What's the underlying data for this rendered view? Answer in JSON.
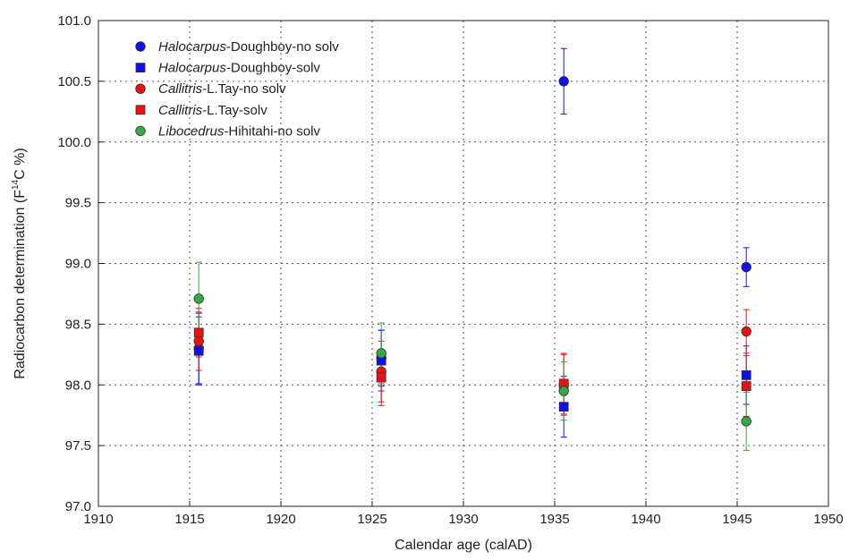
{
  "chart_data": {
    "type": "scatter",
    "title": "",
    "xlabel": "Calendar age (calAD)",
    "ylabel_parts": [
      "Radiocarbon determination (F",
      "14",
      "C %)"
    ],
    "xlim": [
      1910,
      1950
    ],
    "ylim": [
      97.0,
      101.0
    ],
    "x_ticks": [
      1910,
      1915,
      1920,
      1925,
      1930,
      1935,
      1940,
      1945,
      1950
    ],
    "x_tick_labels": [
      "1910",
      "1915",
      "1920",
      "1925",
      "1930",
      "1935",
      "1940",
      "1945",
      "1950"
    ],
    "y_ticks": [
      97.0,
      97.5,
      98.0,
      98.5,
      99.0,
      99.5,
      100.0,
      100.5,
      101.0
    ],
    "y_tick_labels": [
      "97.0",
      "97.5",
      "98.0",
      "98.5",
      "99.0",
      "99.5",
      "100.0",
      "100.5",
      "101.0"
    ],
    "grid": true,
    "legend_position": "top-left",
    "series": [
      {
        "name_italic": "Halocarpus",
        "name_rest": "-Doughboy-no solv",
        "marker": "circle",
        "color": "#1010ee",
        "points": [
          {
            "x": 1915.5,
            "y": 98.3,
            "err": 0.29
          },
          {
            "x": 1925.5,
            "y": 98.22,
            "err": 0.23
          },
          {
            "x": 1935.5,
            "y": 100.5,
            "err": 0.27
          },
          {
            "x": 1945.5,
            "y": 98.97,
            "err": 0.16
          }
        ]
      },
      {
        "name_italic": "Halocarpus",
        "name_rest": "-Doughboy-solv",
        "marker": "square",
        "color": "#1010ee",
        "points": [
          {
            "x": 1915.5,
            "y": 98.28,
            "err": 0.28
          },
          {
            "x": 1925.5,
            "y": 98.2,
            "err": 0.25
          },
          {
            "x": 1935.5,
            "y": 97.82,
            "err": 0.25
          },
          {
            "x": 1945.5,
            "y": 98.08,
            "err": 0.24
          }
        ]
      },
      {
        "name_italic": "Callitris",
        "name_rest": "-L.Tay-no solv",
        "marker": "circle",
        "color": "#ee1010",
        "points": [
          {
            "x": 1915.5,
            "y": 98.36,
            "err": 0.24
          },
          {
            "x": 1925.5,
            "y": 98.11,
            "err": 0.25
          },
          {
            "x": 1935.5,
            "y": 98.0,
            "err": 0.25
          },
          {
            "x": 1945.5,
            "y": 98.44,
            "err": 0.18
          }
        ]
      },
      {
        "name_italic": "Callitris",
        "name_rest": "-L.Tay-solv",
        "marker": "square",
        "color": "#ee1010",
        "points": [
          {
            "x": 1915.5,
            "y": 98.43,
            "err": 0.2
          },
          {
            "x": 1925.5,
            "y": 98.06,
            "err": 0.23
          },
          {
            "x": 1935.5,
            "y": 98.01,
            "err": 0.25
          },
          {
            "x": 1945.5,
            "y": 97.99,
            "err": 0.25
          }
        ]
      },
      {
        "name_italic": "Libocedrus",
        "name_rest": "-Hihitahi-no solv",
        "marker": "circle",
        "color": "#33a844",
        "points": [
          {
            "x": 1915.5,
            "y": 98.71,
            "err": 0.3
          },
          {
            "x": 1925.5,
            "y": 98.26,
            "err": 0.25
          },
          {
            "x": 1935.5,
            "y": 97.95,
            "err": 0.24
          },
          {
            "x": 1945.5,
            "y": 97.7,
            "err": 0.24
          }
        ]
      }
    ]
  }
}
